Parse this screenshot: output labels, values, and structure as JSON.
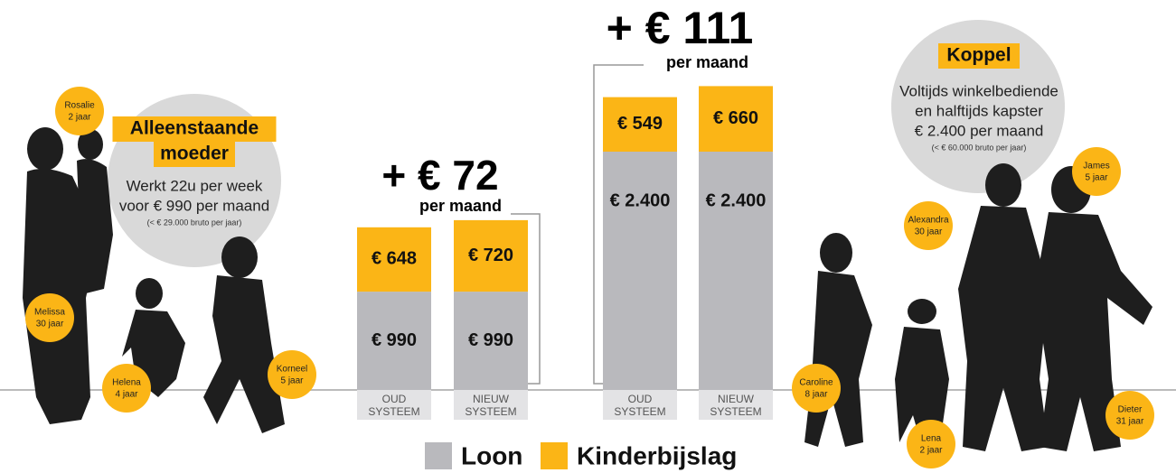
{
  "chart_data": {
    "type": "stacked_bar",
    "categories": [
      "OUD SYSTEEM",
      "NIEUW SYSTEEM",
      "OUD SYSTEEM",
      "NIEUW SYSTEEM"
    ],
    "series": [
      {
        "name": "Loon",
        "color": "#b9b9bd",
        "values": [
          990,
          990,
          2400,
          2400
        ],
        "value_labels": [
          "€ 990",
          "€ 990",
          "€ 2.400",
          "€ 2.400"
        ]
      },
      {
        "name": "Kinderbijslag",
        "color": "#fbb516",
        "values": [
          648,
          720,
          549,
          660
        ],
        "value_labels": [
          "€ 648",
          "€ 720",
          "€ 549",
          "€ 660"
        ]
      }
    ],
    "annotations": [
      {
        "text": "+ € 72",
        "sub": "per maand"
      },
      {
        "text": "+ € 111",
        "sub": "per maand"
      }
    ]
  },
  "panels": [
    {
      "title": [
        "Alleenstaande",
        "moeder"
      ],
      "lines": [
        "Werkt 22u per week",
        "voor € 990 per maand"
      ],
      "note": "(< € 29.000 bruto per jaar)",
      "people": [
        {
          "name": "Rosalie",
          "age": "2 jaar"
        },
        {
          "name": "Melissa",
          "age": "30 jaar"
        },
        {
          "name": "Helena",
          "age": "4 jaar"
        },
        {
          "name": "Korneel",
          "age": "5 jaar"
        }
      ]
    },
    {
      "title": [
        "Koppel"
      ],
      "lines": [
        "Voltijds winkelbediende",
        "en halftijds kapster",
        "€ 2.400 per maand"
      ],
      "note": "(< € 60.000 bruto per jaar)",
      "people": [
        {
          "name": "Caroline",
          "age": "8 jaar"
        },
        {
          "name": "Alexandra",
          "age": "30 jaar"
        },
        {
          "name": "James",
          "age": "5 jaar"
        },
        {
          "name": "Lena",
          "age": "2 jaar"
        },
        {
          "name": "Dieter",
          "age": "31 jaar"
        }
      ]
    }
  ]
}
